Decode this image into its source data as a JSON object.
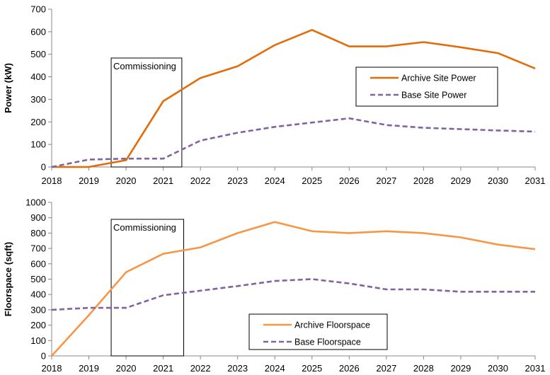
{
  "chart_data": [
    {
      "type": "line",
      "ylabel": "Power (kW)",
      "xlabel": "",
      "x": [
        2018,
        2019,
        2020,
        2021,
        2022,
        2023,
        2024,
        2025,
        2026,
        2027,
        2028,
        2029,
        2030,
        2031
      ],
      "xticks": [
        "2018",
        "2019",
        "2020",
        "2021",
        "2022",
        "2023",
        "2024",
        "2025",
        "2026",
        "2027",
        "2028",
        "2029",
        "2030",
        "2031"
      ],
      "ylim": [
        0,
        700
      ],
      "yticks": [
        "0",
        "100",
        "200",
        "300",
        "400",
        "500",
        "600",
        "700"
      ],
      "series": [
        {
          "name": "Archive Site Power",
          "color": "#e36c0a",
          "dash": "solid",
          "values": [
            0,
            0,
            30,
            292,
            395,
            447,
            541,
            608,
            535,
            535,
            554,
            531,
            505,
            437
          ]
        },
        {
          "name": "Base Site Power",
          "color": "#8064a2",
          "dash": "dashed",
          "values": [
            0,
            33,
            37,
            37,
            117,
            152,
            178,
            197,
            216,
            186,
            174,
            168,
            162,
            157
          ]
        }
      ],
      "annotation": {
        "label": "Commissioning",
        "x_start": 2019.6,
        "x_end": 2021.5
      },
      "legend_position": "right-middle",
      "grid": false
    },
    {
      "type": "line",
      "ylabel": "Floorspace (sqft)",
      "xlabel": "",
      "x": [
        2018,
        2019,
        2020,
        2021,
        2022,
        2023,
        2024,
        2025,
        2026,
        2027,
        2028,
        2029,
        2030,
        2031
      ],
      "xticks": [
        "2018",
        "2019",
        "2020",
        "2021",
        "2022",
        "2023",
        "2024",
        "2025",
        "2026",
        "2027",
        "2028",
        "2029",
        "2030",
        "2031"
      ],
      "ylim": [
        0,
        1000
      ],
      "yticks": [
        "0",
        "100",
        "200",
        "300",
        "400",
        "500",
        "600",
        "700",
        "800",
        "900",
        "1000"
      ],
      "series": [
        {
          "name": "Archive Floorspace",
          "color": "#f79646",
          "dash": "solid",
          "values": [
            0,
            265,
            545,
            665,
            707,
            800,
            872,
            812,
            800,
            812,
            800,
            772,
            725,
            695
          ]
        },
        {
          "name": "Base Floorspace",
          "color": "#8064a2",
          "dash": "dashed",
          "values": [
            300,
            313,
            313,
            395,
            425,
            455,
            488,
            500,
            472,
            433,
            433,
            418,
            418,
            418
          ]
        }
      ],
      "annotation": {
        "label": "Commissioning",
        "x_start": 2019.6,
        "x_end": 2021.55
      },
      "legend_position": "bottom-center",
      "grid": false
    }
  ]
}
